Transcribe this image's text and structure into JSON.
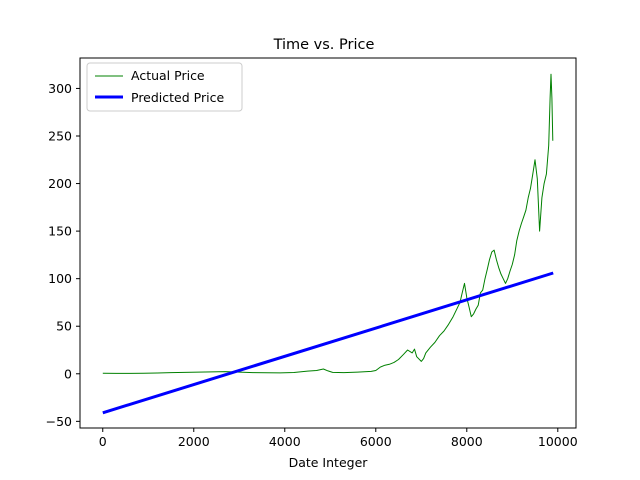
{
  "chart_data": {
    "type": "line",
    "title": "Time vs. Price",
    "xlabel": "Date Integer",
    "ylabel": "",
    "xlim": [
      -500,
      10400
    ],
    "ylim": [
      -57,
      332
    ],
    "xticks": [
      0,
      2000,
      4000,
      6000,
      8000,
      10000
    ],
    "yticks": [
      -50,
      0,
      50,
      100,
      150,
      200,
      250,
      300
    ],
    "grid": false,
    "legend": "top-left",
    "series": [
      {
        "name": "Actual Price",
        "color": "#008000",
        "linewidth": 1,
        "x": [
          0,
          300,
          600,
          900,
          1200,
          1500,
          1800,
          2100,
          2400,
          2700,
          3000,
          3300,
          3600,
          3900,
          4200,
          4500,
          4700,
          4850,
          4950,
          5050,
          5300,
          5600,
          5900,
          6000,
          6100,
          6200,
          6300,
          6400,
          6500,
          6600,
          6700,
          6800,
          6850,
          6900,
          7000,
          7050,
          7100,
          7200,
          7300,
          7400,
          7500,
          7600,
          7700,
          7800,
          7850,
          7900,
          7950,
          8000,
          8050,
          8100,
          8150,
          8200,
          8250,
          8300,
          8350,
          8400,
          8450,
          8500,
          8550,
          8600,
          8650,
          8700,
          8750,
          8800,
          8850,
          8900,
          8950,
          9000,
          9050,
          9100,
          9150,
          9200,
          9250,
          9300,
          9350,
          9400,
          9450,
          9500,
          9550,
          9600,
          9650,
          9700,
          9750,
          9800,
          9830,
          9850,
          9870,
          9890
        ],
        "values": [
          0.5,
          0.4,
          0.4,
          0.6,
          0.8,
          1.2,
          1.5,
          1.8,
          2.0,
          2.3,
          1.8,
          1.2,
          1.0,
          0.9,
          1.3,
          2.8,
          3.5,
          5.0,
          3.0,
          1.5,
          1.2,
          1.8,
          2.5,
          3.5,
          7.0,
          9.0,
          10.0,
          12.0,
          15.0,
          20.0,
          25.0,
          22.0,
          26.0,
          18.0,
          13.0,
          16.0,
          22.0,
          28.0,
          33.0,
          40.0,
          45.0,
          52.0,
          60.0,
          70.0,
          75.0,
          85.0,
          95.0,
          80.0,
          70.0,
          60.0,
          63.0,
          68.0,
          72.0,
          85.0,
          88.0,
          100.0,
          110.0,
          120.0,
          128.0,
          130.0,
          120.0,
          112.0,
          105.0,
          100.0,
          95.0,
          100.0,
          108.0,
          115.0,
          125.0,
          140.0,
          150.0,
          158.0,
          165.0,
          172.0,
          185.0,
          195.0,
          210.0,
          225.0,
          205.0,
          150.0,
          185.0,
          200.0,
          210.0,
          240.0,
          290.0,
          315.0,
          290.0,
          245.0
        ]
      },
      {
        "name": "Predicted Price",
        "color": "#0000ff",
        "linewidth": 3,
        "x": [
          0,
          9900
        ],
        "values": [
          -41,
          106
        ]
      }
    ]
  }
}
